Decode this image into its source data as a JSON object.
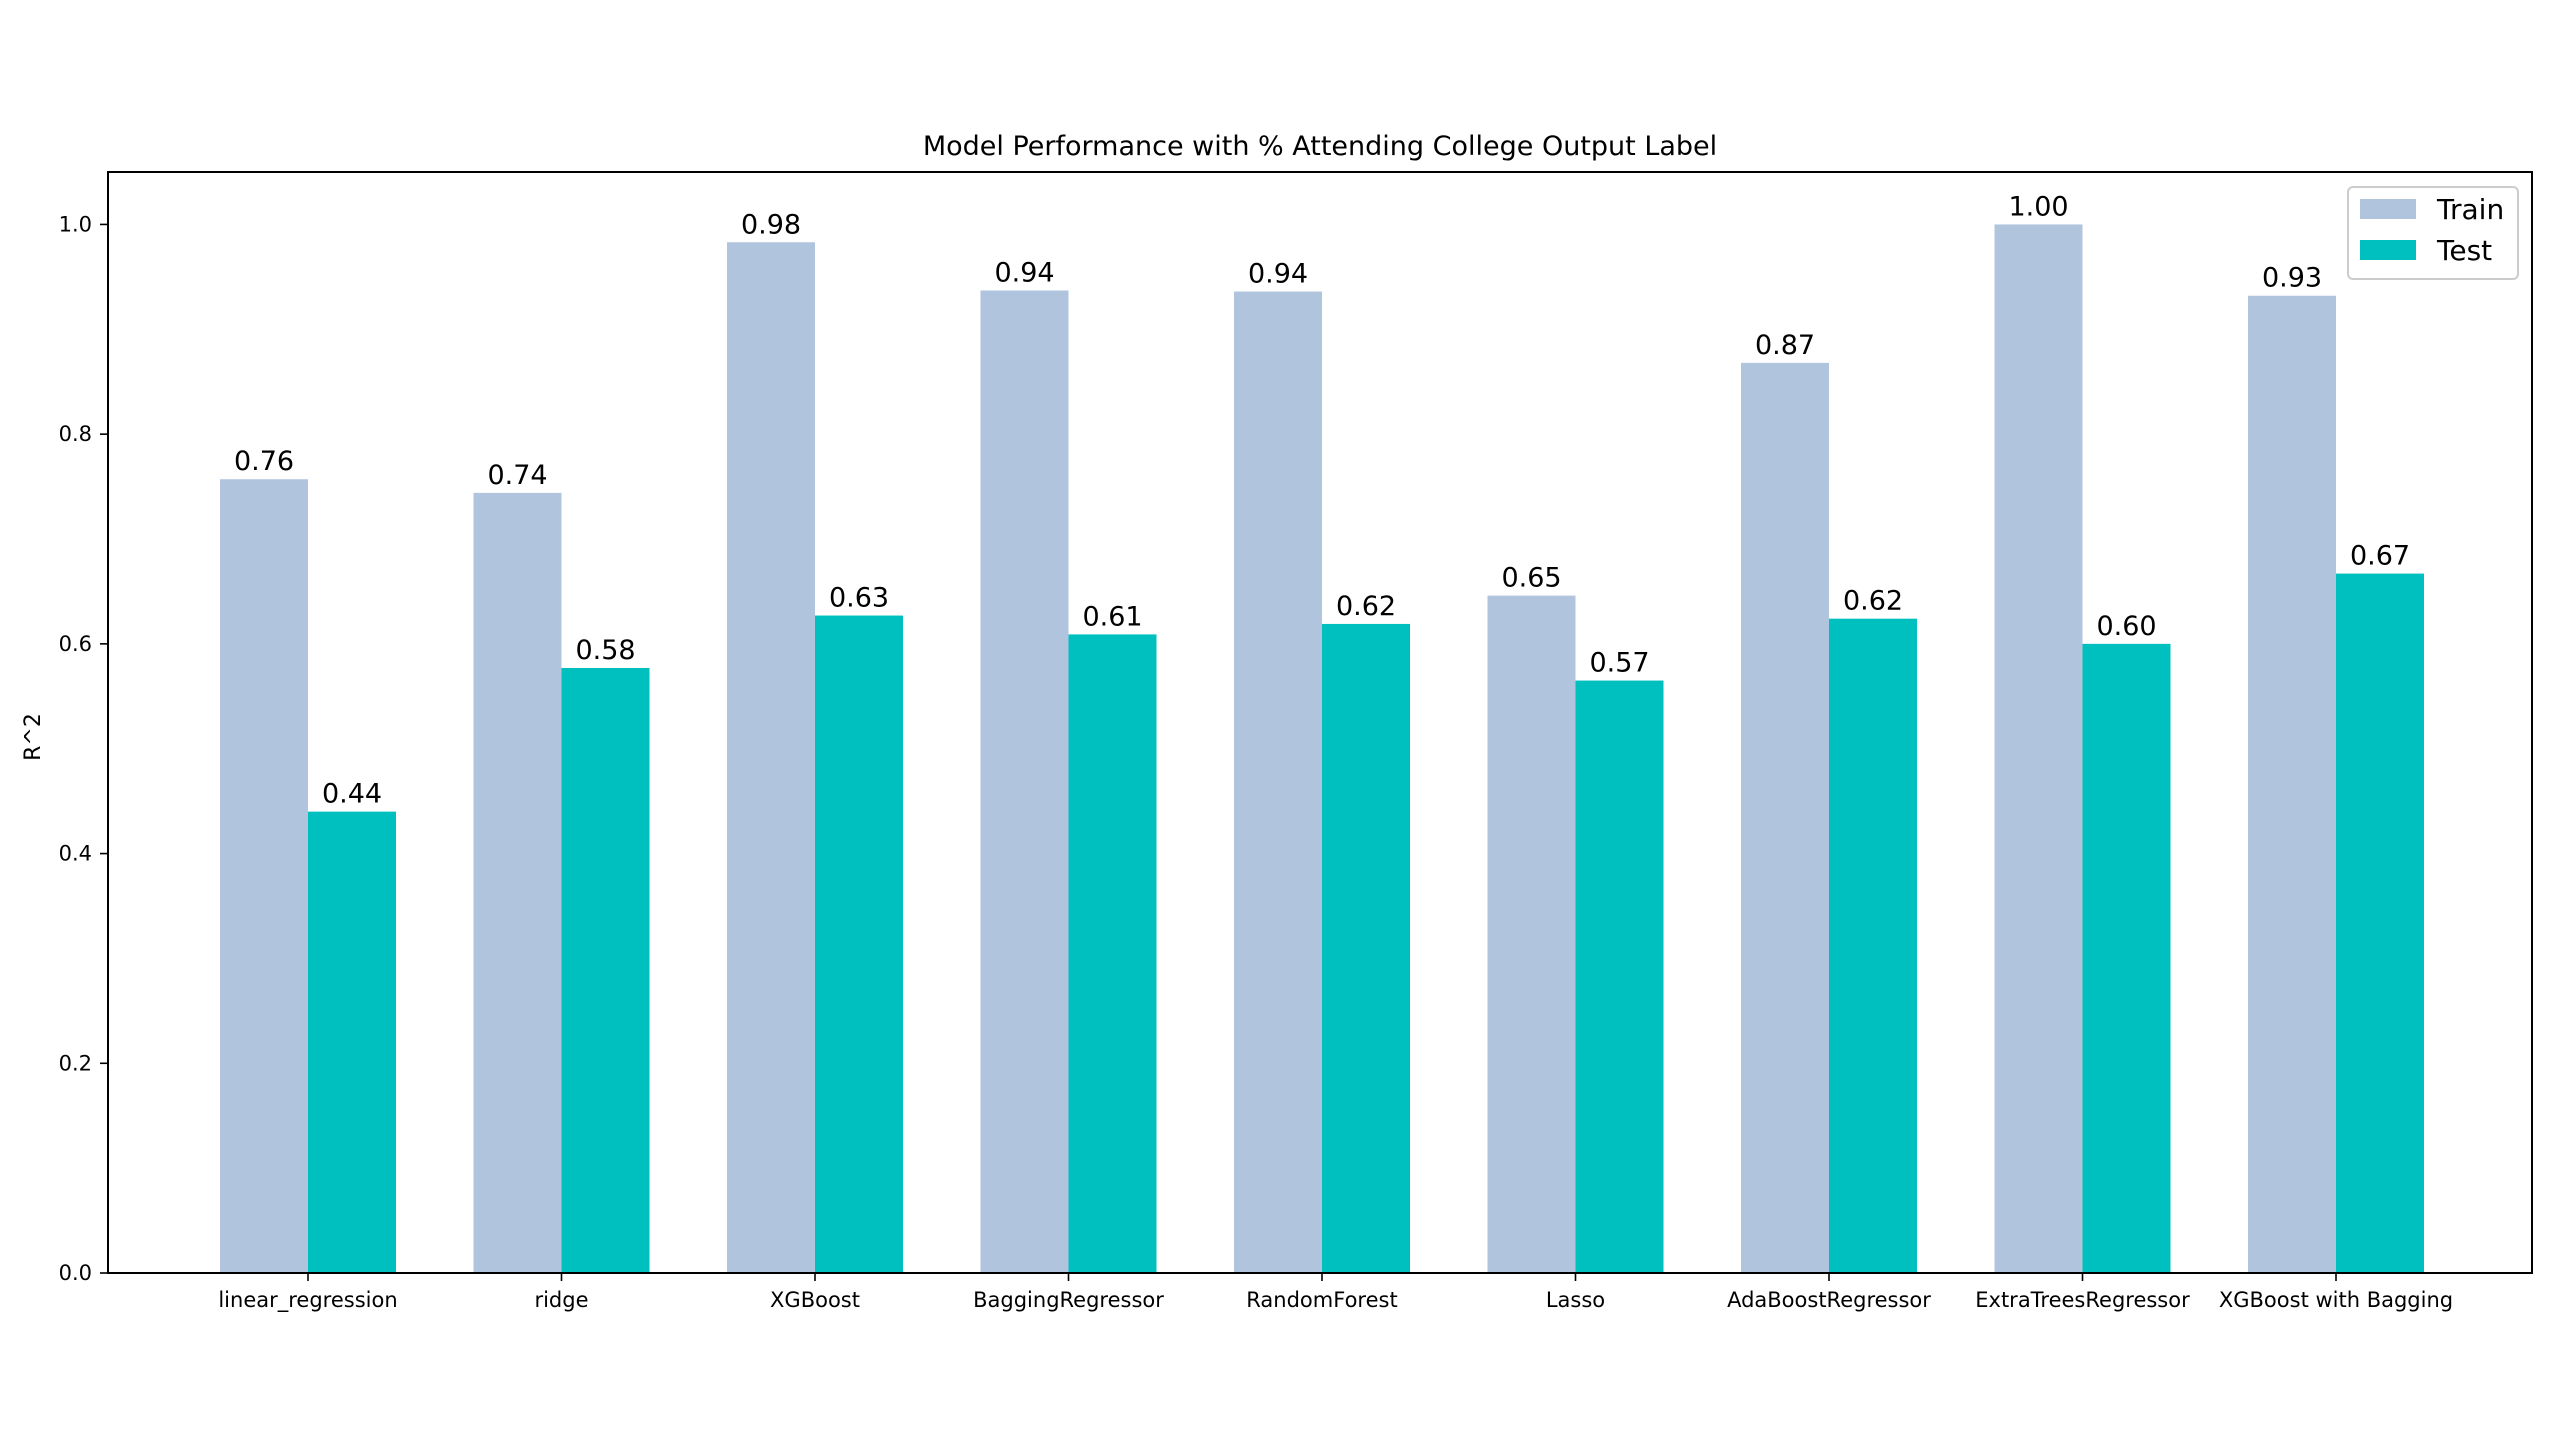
{
  "chart_data": {
    "type": "bar",
    "title": "Model Performance with % Attending College Output Label",
    "xlabel": "",
    "ylabel": "R^2",
    "ylim": [
      0,
      1.05
    ],
    "yticks": [
      "0.0",
      "0.2",
      "0.4",
      "0.6",
      "0.8",
      "1.0"
    ],
    "categories": [
      "linear_regression",
      "ridge",
      "XGBoost",
      "BaggingRegressor",
      "RandomForest",
      "Lasso",
      "AdaBoostRegressor",
      "ExtraTreesRegressor",
      "XGBoost with Bagging"
    ],
    "series": [
      {
        "name": "Train",
        "color": "#b0c4de",
        "values": [
          0.757,
          0.744,
          0.983,
          0.937,
          0.936,
          0.646,
          0.868,
          1.0,
          0.932
        ],
        "labels": [
          "0.76",
          "0.74",
          "0.98",
          "0.94",
          "0.94",
          "0.65",
          "0.87",
          "1.00",
          "0.93"
        ]
      },
      {
        "name": "Test",
        "color": "#00bfbf",
        "values": [
          0.44,
          0.577,
          0.627,
          0.609,
          0.619,
          0.565,
          0.624,
          0.6,
          0.667
        ],
        "labels": [
          "0.44",
          "0.58",
          "0.63",
          "0.61",
          "0.62",
          "0.57",
          "0.62",
          "0.60",
          "0.67"
        ]
      }
    ],
    "grid": false,
    "legend_position": "top-right"
  }
}
